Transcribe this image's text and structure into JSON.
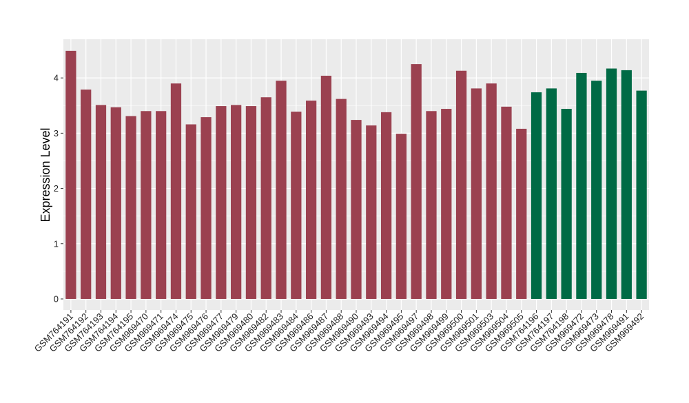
{
  "chart_data": {
    "type": "bar",
    "title": "",
    "xlabel": "",
    "ylabel": "Expression Level",
    "ylim": [
      -0.2,
      4.7
    ],
    "yticks": [
      0,
      1,
      2,
      3,
      4
    ],
    "grid": true,
    "legend": "none",
    "panel_background": "#EBEBEB",
    "grid_color": "#FFFFFF",
    "categories": [
      "GSM764191",
      "GSM764192",
      "GSM764193",
      "GSM764194",
      "GSM764195",
      "GSM969470",
      "GSM969471",
      "GSM969474",
      "GSM969475",
      "GSM969476",
      "GSM969477",
      "GSM969479",
      "GSM969480",
      "GSM969482",
      "GSM969483",
      "GSM969484",
      "GSM969486",
      "GSM969487",
      "GSM969488",
      "GSM969490",
      "GSM969493",
      "GSM969494",
      "GSM969495",
      "GSM969497",
      "GSM969498",
      "GSM969499",
      "GSM969500",
      "GSM969501",
      "GSM969503",
      "GSM969504",
      "GSM969505",
      "GSM764196",
      "GSM764197",
      "GSM764198",
      "GSM969472",
      "GSM969473",
      "GSM969478",
      "GSM969491",
      "GSM969492"
    ],
    "values": [
      4.49,
      3.79,
      3.51,
      3.47,
      3.31,
      3.4,
      3.4,
      3.9,
      3.16,
      3.29,
      3.49,
      3.51,
      3.49,
      3.65,
      3.95,
      3.39,
      3.59,
      4.04,
      3.62,
      3.24,
      3.14,
      3.38,
      2.99,
      4.25,
      3.4,
      3.44,
      4.13,
      3.81,
      3.9,
      3.48,
      3.08,
      3.74,
      3.81,
      3.44,
      4.09,
      3.95,
      4.17,
      4.14,
      3.77
    ],
    "groups": [
      "a",
      "a",
      "a",
      "a",
      "a",
      "a",
      "a",
      "a",
      "a",
      "a",
      "a",
      "a",
      "a",
      "a",
      "a",
      "a",
      "a",
      "a",
      "a",
      "a",
      "a",
      "a",
      "a",
      "a",
      "a",
      "a",
      "a",
      "a",
      "a",
      "a",
      "a",
      "b",
      "b",
      "b",
      "b",
      "b",
      "b",
      "b",
      "b"
    ],
    "group_colors": {
      "a": "#9B4150",
      "b": "#006A45"
    }
  }
}
